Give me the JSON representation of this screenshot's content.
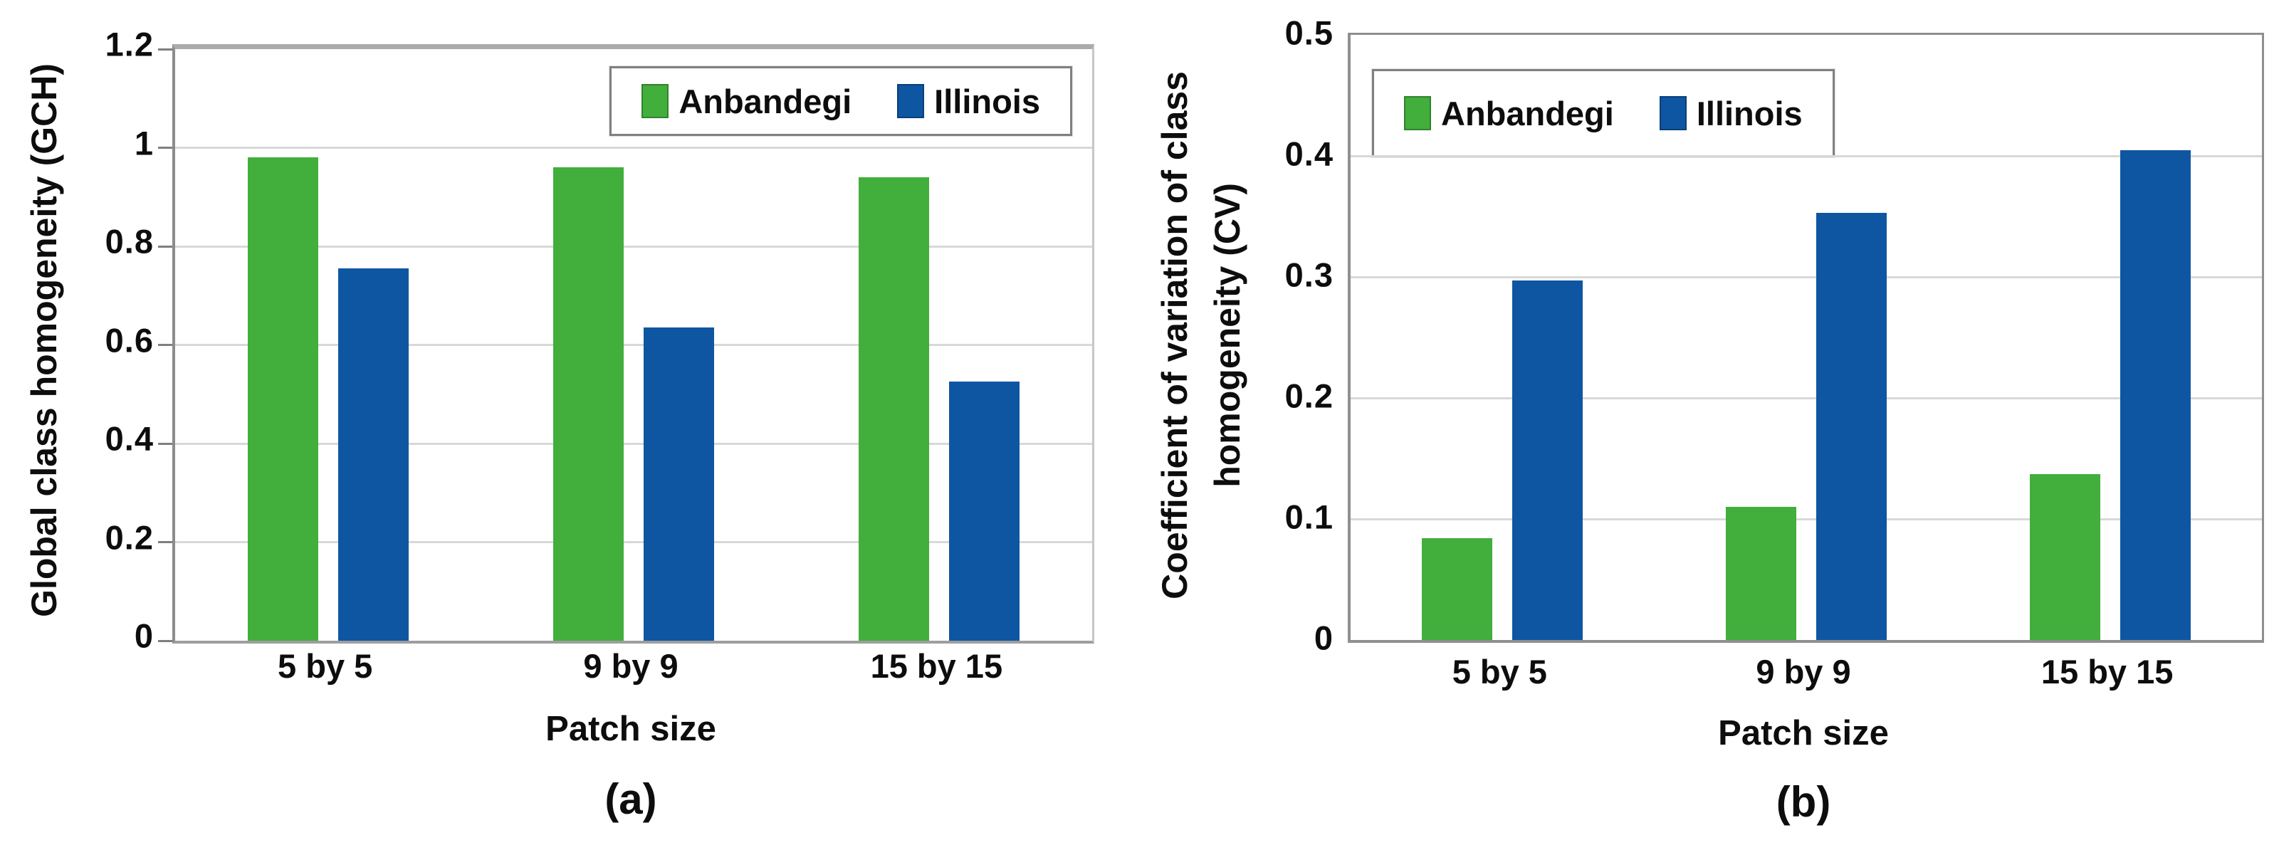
{
  "colors": {
    "anbandegi": "#42AE3C",
    "illinois": "#0E56A2",
    "gridline": "#d8d8d8",
    "axis_border": "#8f8f8f",
    "text": "#0d0d0d"
  },
  "chart_data": [
    {
      "type": "bar",
      "panel_label": "(a)",
      "ylabel_lines": [
        "Global class homogeneity (GCH)"
      ],
      "xlabel": "Patch size",
      "categories": [
        "5 by 5",
        "9 by 9",
        "15 by 15"
      ],
      "series": [
        {
          "name": "Anbandegi",
          "color_key": "anbandegi",
          "values": [
            0.98,
            0.96,
            0.94
          ]
        },
        {
          "name": "Illinois",
          "color_key": "illinois",
          "values": [
            0.755,
            0.635,
            0.525
          ]
        }
      ],
      "ylim": [
        0,
        1.2
      ],
      "ytick_labels": [
        "0",
        "0.2",
        "0.4",
        "0.6",
        "0.8",
        "1",
        "1.2"
      ],
      "ytick_values": [
        0,
        0.2,
        0.4,
        0.6,
        0.8,
        1,
        1.2
      ],
      "grid": true,
      "legend_position": "top-right"
    },
    {
      "type": "bar",
      "panel_label": "(b)",
      "ylabel_lines": [
        "Coefficient of variation of class",
        "homogeneity (CV)"
      ],
      "xlabel": "Patch size",
      "categories": [
        "5 by 5",
        "9 by 9",
        "15 by 15"
      ],
      "series": [
        {
          "name": "Anbandegi",
          "color_key": "anbandegi",
          "values": [
            0.084,
            0.11,
            0.137
          ]
        },
        {
          "name": "Illinois",
          "color_key": "illinois",
          "values": [
            0.297,
            0.353,
            0.405
          ]
        }
      ],
      "ylim": [
        0,
        0.5
      ],
      "ytick_labels": [
        "0",
        "0.1",
        "0.2",
        "0.3",
        "0.4",
        "0.5"
      ],
      "ytick_values": [
        0,
        0.1,
        0.2,
        0.3,
        0.4,
        0.5
      ],
      "grid": true,
      "legend_position": "top-left"
    }
  ]
}
